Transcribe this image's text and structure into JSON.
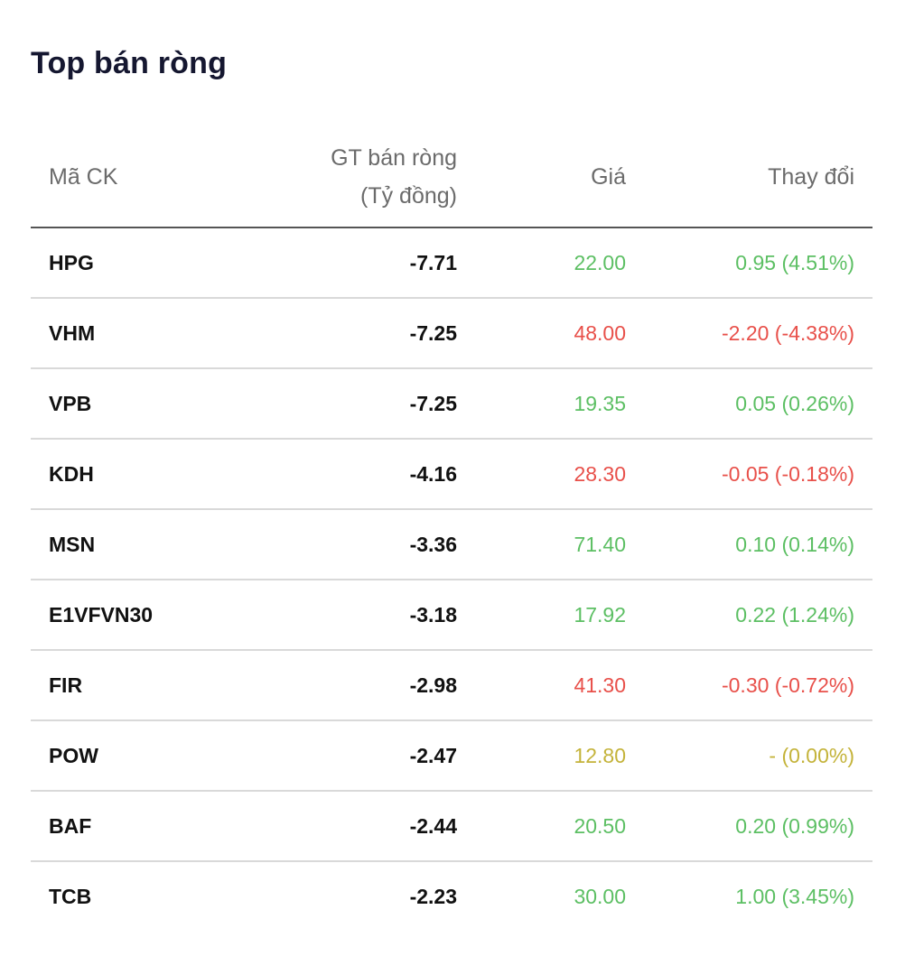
{
  "title": "Top bán ròng",
  "colors": {
    "up": "#5cbf63",
    "down": "#e8504a",
    "ref": "#c4b33a"
  },
  "columns": {
    "symbol": "Mã CK",
    "net_sell_line1": "GT bán ròng",
    "net_sell_line2": "(Tỷ đồng)",
    "price": "Giá",
    "change": "Thay đổi"
  },
  "rows": [
    {
      "symbol": "HPG",
      "net_sell": "-7.71",
      "price": "22.00",
      "change": "0.95 (4.51%)",
      "trend": "up"
    },
    {
      "symbol": "VHM",
      "net_sell": "-7.25",
      "price": "48.00",
      "change": "-2.20 (-4.38%)",
      "trend": "down"
    },
    {
      "symbol": "VPB",
      "net_sell": "-7.25",
      "price": "19.35",
      "change": "0.05 (0.26%)",
      "trend": "up"
    },
    {
      "symbol": "KDH",
      "net_sell": "-4.16",
      "price": "28.30",
      "change": "-0.05 (-0.18%)",
      "trend": "down"
    },
    {
      "symbol": "MSN",
      "net_sell": "-3.36",
      "price": "71.40",
      "change": "0.10 (0.14%)",
      "trend": "up"
    },
    {
      "symbol": "E1VFVN30",
      "net_sell": "-3.18",
      "price": "17.92",
      "change": "0.22 (1.24%)",
      "trend": "up"
    },
    {
      "symbol": "FIR",
      "net_sell": "-2.98",
      "price": "41.30",
      "change": "-0.30 (-0.72%)",
      "trend": "down"
    },
    {
      "symbol": "POW",
      "net_sell": "-2.47",
      "price": "12.80",
      "change": "- (0.00%)",
      "trend": "ref"
    },
    {
      "symbol": "BAF",
      "net_sell": "-2.44",
      "price": "20.50",
      "change": "0.20 (0.99%)",
      "trend": "up"
    },
    {
      "symbol": "TCB",
      "net_sell": "-2.23",
      "price": "30.00",
      "change": "1.00 (3.45%)",
      "trend": "up"
    }
  ]
}
